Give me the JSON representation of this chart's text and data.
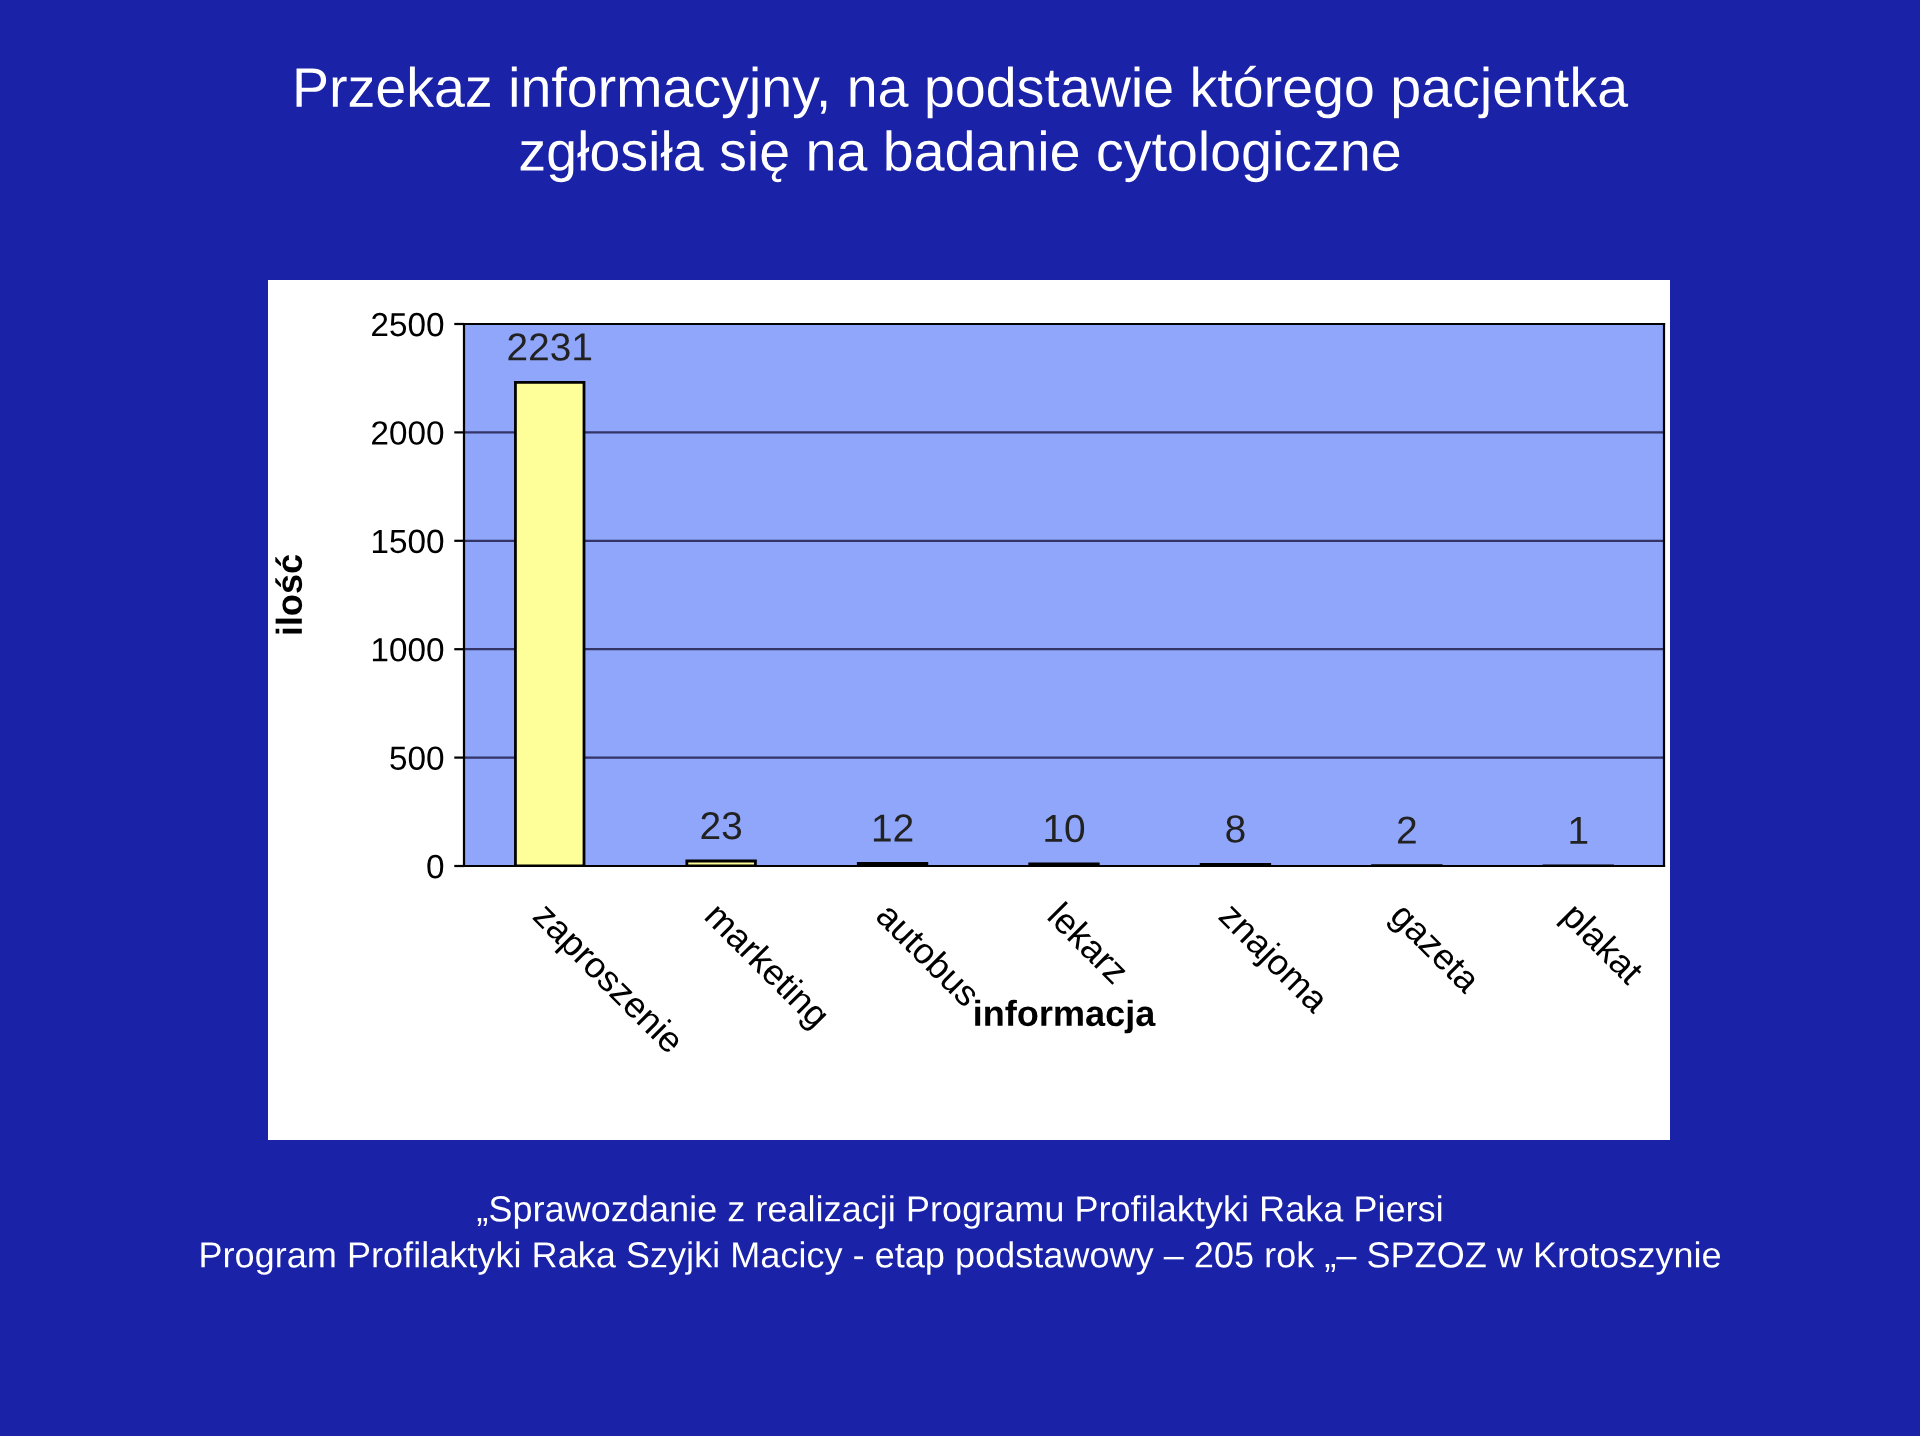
{
  "chart_data": {
    "type": "bar",
    "title": "Przekaz informacyjny, na podstawie którego pacjentka\nzgłosiła się na badanie cytologiczne",
    "xlabel": "informacja",
    "ylabel": "ilość",
    "categories": [
      "zaproszenie",
      "marketing",
      "autobus",
      "lekarz",
      "znajoma",
      "gazeta",
      "plakat"
    ],
    "values": [
      2231,
      23,
      12,
      10,
      8,
      2,
      1
    ],
    "color": "#ffff99",
    "ylim": [
      0,
      2500
    ],
    "yticks": [
      0,
      500,
      1000,
      1500,
      2000,
      2500
    ],
    "grid": "y",
    "data_labels": true,
    "annotations": [
      "„Sprawozdanie z realizacji Programu Profilaktyki Raka Piersi",
      "Program Profilaktyki Raka Szyjki Macicy - etap podstawowy – 205 rok „– SPZOZ w Krotoszynie"
    ]
  }
}
